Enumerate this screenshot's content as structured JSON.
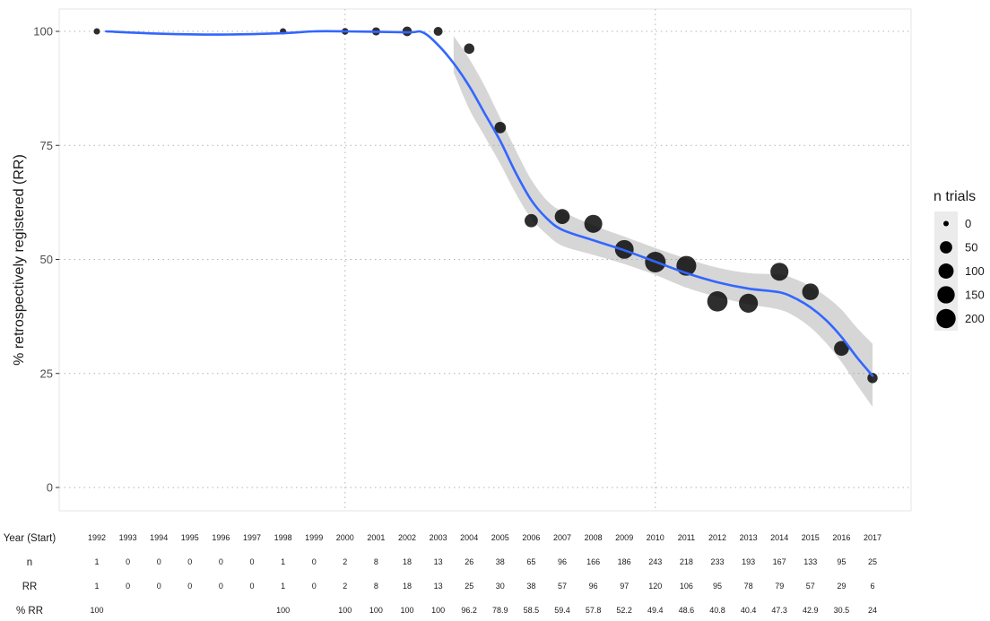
{
  "chart_data": {
    "type": "scatter",
    "ylabel": "% retrospectively registered (RR)",
    "ylim": [
      0,
      100
    ],
    "y_ticks": [
      0,
      25,
      50,
      75,
      100
    ],
    "x_range": [
      1992,
      2017
    ],
    "grid": "dotted gridlines at y = 25, 50, 75, 100 and x = 2000, 2010",
    "points": [
      {
        "x": 1992,
        "y": 100,
        "n": 1
      },
      {
        "x": 1998,
        "y": 100,
        "n": 1
      },
      {
        "x": 2000,
        "y": 100,
        "n": 2
      },
      {
        "x": 2001,
        "y": 100,
        "n": 8
      },
      {
        "x": 2002,
        "y": 100,
        "n": 18
      },
      {
        "x": 2003,
        "y": 100,
        "n": 13
      },
      {
        "x": 2004,
        "y": 96.2,
        "n": 26
      },
      {
        "x": 2005,
        "y": 78.9,
        "n": 38
      },
      {
        "x": 2006,
        "y": 58.5,
        "n": 65
      },
      {
        "x": 2007,
        "y": 59.4,
        "n": 96
      },
      {
        "x": 2008,
        "y": 57.8,
        "n": 166
      },
      {
        "x": 2009,
        "y": 52.2,
        "n": 186
      },
      {
        "x": 2010,
        "y": 49.4,
        "n": 243
      },
      {
        "x": 2011,
        "y": 48.6,
        "n": 218
      },
      {
        "x": 2012,
        "y": 40.8,
        "n": 233
      },
      {
        "x": 2013,
        "y": 40.4,
        "n": 193
      },
      {
        "x": 2014,
        "y": 47.3,
        "n": 167
      },
      {
        "x": 2015,
        "y": 42.9,
        "n": 133
      },
      {
        "x": 2016,
        "y": 30.5,
        "n": 95
      },
      {
        "x": 2017,
        "y": 24,
        "n": 25
      }
    ],
    "smooth_line": {
      "color": "#3366ff",
      "x": [
        1992.3,
        1994,
        1996,
        1998,
        1999,
        2000,
        2002,
        2002.5,
        2003,
        2003.5,
        2004,
        2004.5,
        2005,
        2005.5,
        2006,
        2006.5,
        2007,
        2008,
        2009,
        2010,
        2011,
        2012,
        2013,
        2014,
        2014.5,
        2015,
        2015.5,
        2016,
        2016.5,
        2017
      ],
      "y": [
        100,
        99.5,
        99.3,
        99.6,
        100,
        100,
        99.8,
        99.8,
        97,
        93,
        88,
        82,
        76,
        69,
        63,
        59,
        56.5,
        54.2,
        52,
        49.5,
        47,
        45,
        43.6,
        42.8,
        41.5,
        39.5,
        36.7,
        33,
        28.5,
        24.5
      ]
    },
    "ci_band": {
      "color": "#999999",
      "x": [
        2003.5,
        2004,
        2004.5,
        2005,
        2005.5,
        2006,
        2006.5,
        2007,
        2008,
        2009,
        2010,
        2011,
        2012,
        2013,
        2014,
        2014.5,
        2015,
        2015.5,
        2016,
        2016.5,
        2017
      ],
      "upper": [
        99,
        94,
        88,
        81,
        74,
        67.5,
        63,
        60.5,
        57.5,
        55,
        52.5,
        50.2,
        48.2,
        47,
        46.7,
        45.7,
        44.1,
        41.9,
        39,
        35,
        31.5
      ],
      "lower": [
        91,
        83,
        77,
        71,
        64.5,
        59,
        55.5,
        53,
        51,
        49,
        46.6,
        43.8,
        41.8,
        40.2,
        39,
        37.5,
        35.1,
        31.7,
        27.5,
        22.5,
        17.7
      ]
    },
    "legend": {
      "title": "n trials",
      "placement": "right",
      "items": [
        {
          "label": "0",
          "value": 0
        },
        {
          "label": "50",
          "value": 50
        },
        {
          "label": "100",
          "value": 100
        },
        {
          "label": "150",
          "value": 150
        },
        {
          "label": "200",
          "value": 200
        }
      ]
    },
    "table": {
      "row_labels": [
        "Year (Start)",
        "n",
        "RR",
        "% RR"
      ],
      "years": [
        "1992",
        "1993",
        "1994",
        "1995",
        "1996",
        "1997",
        "1998",
        "1999",
        "2000",
        "2001",
        "2002",
        "2003",
        "2004",
        "2005",
        "2006",
        "2007",
        "2008",
        "2009",
        "2010",
        "2011",
        "2012",
        "2013",
        "2014",
        "2015",
        "2016",
        "2017"
      ],
      "n": [
        "1",
        "0",
        "0",
        "0",
        "0",
        "0",
        "1",
        "0",
        "2",
        "8",
        "18",
        "13",
        "26",
        "38",
        "65",
        "96",
        "166",
        "186",
        "243",
        "218",
        "233",
        "193",
        "167",
        "133",
        "95",
        "25"
      ],
      "rr": [
        "1",
        "0",
        "0",
        "0",
        "0",
        "0",
        "1",
        "0",
        "2",
        "8",
        "18",
        "13",
        "25",
        "30",
        "38",
        "57",
        "96",
        "97",
        "120",
        "106",
        "95",
        "78",
        "79",
        "57",
        "29",
        "6"
      ],
      "pct_rr": [
        "100",
        "",
        "",
        "",
        "",
        "",
        "100",
        "",
        "100",
        "100",
        "100",
        "100",
        "96.2",
        "78.9",
        "58.5",
        "59.4",
        "57.8",
        "52.2",
        "49.4",
        "48.6",
        "40.8",
        "40.4",
        "47.3",
        "42.9",
        "30.5",
        "24"
      ]
    }
  }
}
